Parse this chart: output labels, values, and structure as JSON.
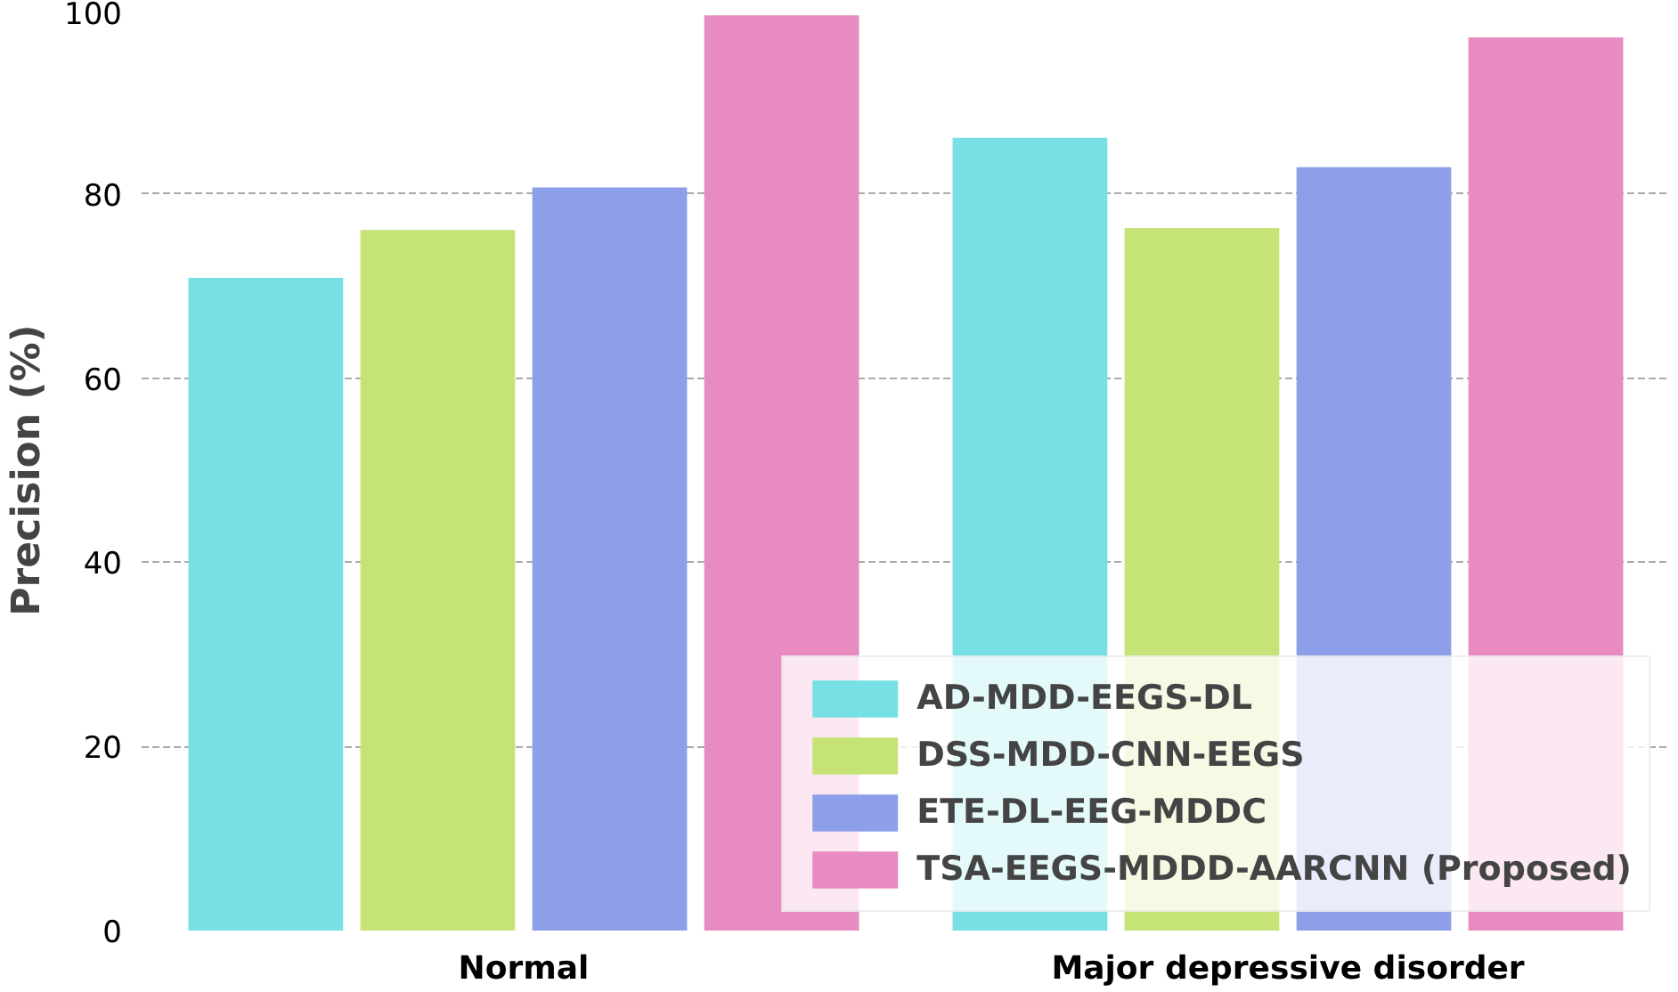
{
  "chart_data": {
    "type": "bar",
    "ylabel": "Precision (%)",
    "categories": [
      "Normal",
      "Major depressive disorder"
    ],
    "series": [
      {
        "name": "AD-MDD-EEGS-DL",
        "color": "#76e0e4",
        "values": [
          70.9,
          86.1
        ]
      },
      {
        "name": "DSS-MDD-CNN-EEGS",
        "color": "#c6e377",
        "values": [
          76.1,
          76.3
        ]
      },
      {
        "name": "ETE-DL-EEG-MDDC",
        "color": "#8c9fe8",
        "values": [
          80.7,
          82.9
        ]
      },
      {
        "name": "TSA-EEGS-MDDD-AARCNN (Proposed)",
        "color": "#e88bc0",
        "values": [
          99.4,
          97.0
        ]
      }
    ],
    "ylim": [
      0,
      100
    ],
    "yticks": [
      0,
      20,
      40,
      60,
      80,
      100
    ],
    "grid": "y",
    "legend": "bottom right"
  }
}
